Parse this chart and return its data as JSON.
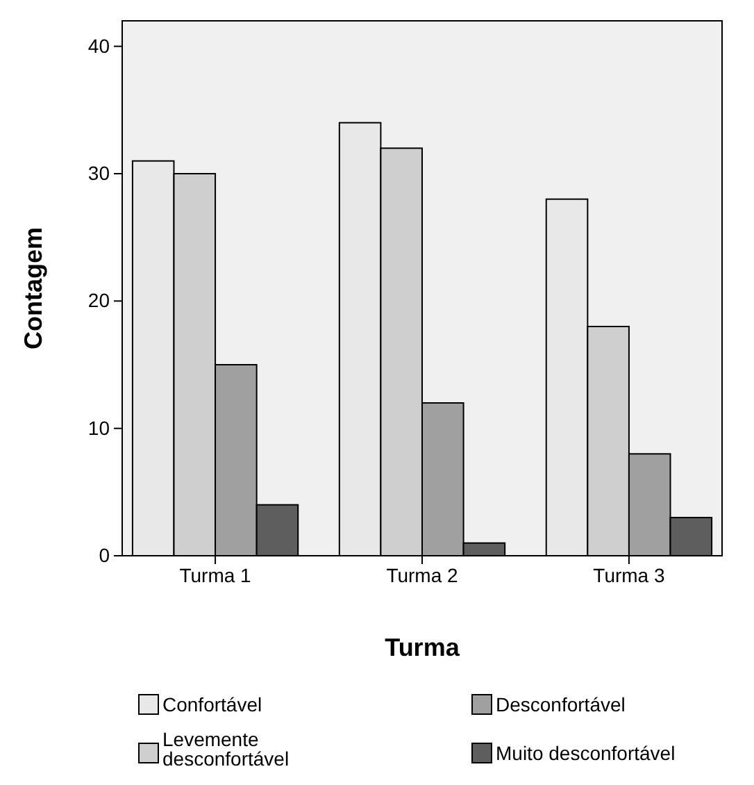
{
  "chart_data": {
    "type": "bar",
    "xlabel": "Turma",
    "ylabel": "Contagem",
    "categories": [
      "Turma 1",
      "Turma 2",
      "Turma 3"
    ],
    "series": [
      {
        "name": "Confortável",
        "color": "#e8e8e8",
        "values": [
          31,
          34,
          28
        ]
      },
      {
        "name": "Levemente desconfortável",
        "color": "#cfcfcf",
        "values": [
          30,
          32,
          18
        ]
      },
      {
        "name": "Desconfortável",
        "color": "#a0a0a0",
        "values": [
          15,
          12,
          8
        ]
      },
      {
        "name": "Muito desconfortável",
        "color": "#5e5e5e",
        "values": [
          4,
          1,
          3
        ]
      }
    ],
    "ylim": [
      0,
      42
    ],
    "yticks": [
      0,
      10,
      20,
      30,
      40
    ],
    "grid": false,
    "legend": "bottom"
  }
}
